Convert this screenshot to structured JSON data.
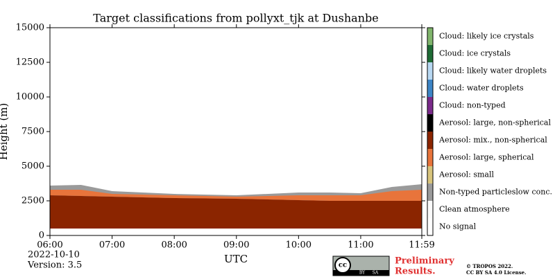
{
  "chart_data": {
    "type": "classification",
    "title": "Target classifications from pollyxt_tjk at Dushanbe",
    "xlabel": "UTC",
    "ylabel": "Height (m)",
    "xlim": [
      6,
      11.983
    ],
    "xticks": [
      {
        "value": 6,
        "label": "06:00"
      },
      {
        "value": 7,
        "label": "07:00"
      },
      {
        "value": 8,
        "label": "08:00"
      },
      {
        "value": 9,
        "label": "09:00"
      },
      {
        "value": 10,
        "label": "10:00"
      },
      {
        "value": 11,
        "label": "11:00"
      },
      {
        "value": 11.983,
        "label": "11:59"
      }
    ],
    "ylim": [
      0,
      15000
    ],
    "yticks": [
      0,
      2500,
      5000,
      7500,
      10000,
      12500,
      15000
    ],
    "classes": [
      {
        "label": "No signal",
        "color": "#ffffff"
      },
      {
        "label": "Clean atmosphere",
        "color": "#fbfbfb"
      },
      {
        "label": "Non-typed particleslow conc.",
        "color": "#9a9a9a"
      },
      {
        "label": "Aerosol: small",
        "color": "#d8c47c"
      },
      {
        "label": "Aerosol: large, spherical",
        "color": "#e8743b"
      },
      {
        "label": "Aerosol: mix., non-spherical",
        "color": "#8b2500"
      },
      {
        "label": "Aerosol: large, non-spherical",
        "color": "#000000"
      },
      {
        "label": "Cloud: non-typed",
        "color": "#7a2a8a"
      },
      {
        "label": "Cloud: water droplets",
        "color": "#3d85c6"
      },
      {
        "label": "Cloud: likely water droplets",
        "color": "#b8d8f2"
      },
      {
        "label": "Cloud: ice crystals",
        "color": "#1f6b35"
      },
      {
        "label": "Cloud: likely ice crystals",
        "color": "#80b56c"
      }
    ],
    "areas": [
      {
        "class": 2,
        "x": [
          6,
          6.5,
          7,
          8,
          9,
          10,
          10.5,
          11,
          11.5,
          11.983
        ],
        "bottom": [
          2900,
          2850,
          2800,
          2700,
          2650,
          2550,
          2500,
          2500,
          2500,
          2500
        ],
        "top": [
          3600,
          3650,
          3200,
          3000,
          2900,
          3100,
          3100,
          3050,
          3500,
          3700
        ]
      },
      {
        "class": 4,
        "x": [
          6,
          6.5,
          7,
          8,
          9,
          10,
          10.5,
          11,
          11.5,
          11.983
        ],
        "bottom": [
          2900,
          2850,
          2800,
          2700,
          2650,
          2550,
          2500,
          2500,
          2500,
          2500
        ],
        "top": [
          3300,
          3300,
          3000,
          2900,
          2800,
          2900,
          2900,
          2900,
          3200,
          3300
        ]
      },
      {
        "class": 5,
        "x": [
          6,
          6.5,
          7,
          8,
          9,
          10,
          10.5,
          11,
          11.5,
          11.983
        ],
        "bottom": [
          500,
          500,
          500,
          500,
          500,
          500,
          500,
          500,
          500,
          500
        ],
        "top": [
          2900,
          2850,
          2800,
          2700,
          2650,
          2550,
          2500,
          2500,
          2500,
          2500
        ]
      }
    ],
    "date": "2022-10-10",
    "version": "Version: 3.5",
    "badge": [
      "cc",
      "BY",
      "SA"
    ],
    "preliminary": [
      "Preliminary",
      "Results."
    ],
    "copyright": [
      "© TROPOS 2022.",
      "CC BY SA 4.0 License."
    ]
  }
}
